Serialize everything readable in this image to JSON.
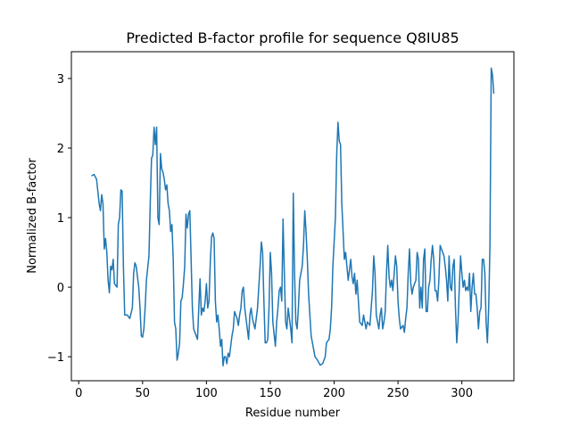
{
  "chart_data": {
    "type": "line",
    "title": "Predicted B-factor profile for sequence Q8IU85",
    "xlabel": "Residue number",
    "ylabel": "Normalized B-factor",
    "xlim": [
      -5.75,
      340.75
    ],
    "ylim": [
      -1.345,
      3.385
    ],
    "xticks": [
      0,
      50,
      100,
      150,
      200,
      250,
      300
    ],
    "yticks": [
      {
        "value": -1,
        "label": "−1"
      },
      0,
      1,
      2,
      3
    ],
    "series": [
      {
        "color": "#1f77b4",
        "x": [
          10,
          12,
          14,
          16,
          17,
          18,
          19,
          20,
          21,
          22,
          23,
          24,
          25,
          26,
          27,
          28,
          30,
          31,
          32,
          33,
          34,
          35,
          36,
          38,
          40,
          42,
          43,
          44,
          45,
          46,
          47,
          48,
          49,
          50,
          51,
          52,
          53,
          55,
          56,
          57,
          58,
          59,
          60,
          61,
          62,
          63,
          64,
          65,
          66,
          67,
          68,
          69,
          70,
          71,
          72,
          73,
          74,
          75,
          76,
          77,
          78,
          79,
          80,
          81,
          82,
          83,
          84,
          85,
          86,
          87,
          88,
          89,
          90,
          92,
          93,
          94,
          95,
          96,
          97,
          98,
          99,
          100,
          101,
          102,
          103,
          104,
          105,
          106,
          107,
          108,
          109,
          110,
          111,
          112,
          113,
          114,
          115,
          116,
          117,
          118,
          119,
          120,
          121,
          122,
          123,
          124,
          125,
          126,
          127,
          128,
          129,
          130,
          132,
          133,
          134,
          135,
          136,
          138,
          139,
          140,
          141,
          142,
          143,
          144,
          145,
          146,
          147,
          148,
          149,
          150,
          151,
          152,
          154,
          155,
          156,
          157,
          158,
          159,
          160,
          161,
          162,
          163,
          164,
          166,
          167,
          168,
          169,
          170,
          171,
          172,
          173,
          175,
          176,
          177,
          178,
          179,
          180,
          181,
          182,
          183,
          185,
          187,
          189,
          191,
          193,
          194,
          196,
          197,
          198,
          199,
          201,
          202,
          203,
          204,
          205,
          206,
          207,
          208,
          209,
          210,
          211,
          212,
          213,
          214,
          215,
          216,
          217,
          218,
          219,
          220,
          222,
          223,
          225,
          226,
          228,
          229,
          230,
          231,
          232,
          233,
          234,
          235,
          236,
          237,
          238,
          239,
          240,
          241,
          242,
          243,
          244,
          245,
          246,
          247,
          248,
          249,
          250,
          251,
          252,
          254,
          255,
          256,
          257,
          258,
          259,
          260,
          261,
          262,
          264,
          265,
          266,
          267,
          268,
          269,
          270,
          271,
          272,
          273,
          274,
          275,
          276,
          277,
          278,
          279,
          280,
          281,
          282,
          283,
          284,
          285,
          286,
          287,
          288,
          289,
          290,
          291,
          292,
          293,
          294,
          295,
          296,
          297,
          298,
          299,
          300,
          301,
          302,
          303,
          304,
          305,
          306,
          307,
          308,
          309,
          310,
          311,
          312,
          313,
          314,
          315,
          316,
          317,
          318,
          319,
          320,
          321,
          322,
          323,
          324,
          325
        ],
        "values": [
          1.6,
          1.62,
          1.55,
          1.2,
          1.1,
          1.33,
          1.2,
          0.55,
          0.7,
          0.5,
          0.1,
          -0.08,
          0.3,
          0.25,
          0.4,
          0.05,
          0.0,
          0.9,
          1.0,
          1.4,
          1.38,
          0.3,
          -0.4,
          -0.4,
          -0.45,
          -0.3,
          0.2,
          0.35,
          0.3,
          0.15,
          0.0,
          -0.3,
          -0.7,
          -0.72,
          -0.6,
          -0.3,
          0.1,
          0.45,
          1.2,
          1.85,
          1.9,
          2.3,
          2.05,
          2.3,
          1.0,
          0.9,
          1.92,
          1.7,
          1.65,
          1.55,
          1.4,
          1.47,
          1.2,
          1.1,
          0.8,
          0.9,
          0.4,
          -0.5,
          -0.6,
          -1.05,
          -0.95,
          -0.8,
          -0.2,
          -0.15,
          0.05,
          0.3,
          1.05,
          0.85,
          1.05,
          1.1,
          0.4,
          -0.3,
          -0.6,
          -0.7,
          -0.75,
          -0.3,
          0.12,
          -0.4,
          -0.3,
          -0.35,
          -0.2,
          0.05,
          -0.3,
          -0.2,
          0.35,
          0.72,
          0.78,
          0.7,
          -0.2,
          -0.5,
          -0.4,
          -0.6,
          -0.85,
          -0.75,
          -1.13,
          -1.0,
          -1.0,
          -1.1,
          -0.95,
          -1.0,
          -0.85,
          -0.7,
          -0.6,
          -0.35,
          -0.4,
          -0.45,
          -0.55,
          -0.4,
          -0.3,
          -0.05,
          0.0,
          -0.3,
          -0.6,
          -0.75,
          -0.4,
          -0.3,
          -0.45,
          -0.6,
          -0.45,
          -0.3,
          0.0,
          0.3,
          0.65,
          0.5,
          -0.2,
          -0.8,
          -0.8,
          -0.75,
          -0.3,
          0.5,
          0.2,
          -0.5,
          -0.85,
          -0.5,
          -0.3,
          -0.05,
          0.0,
          -0.2,
          0.98,
          0.2,
          -0.5,
          -0.6,
          -0.3,
          -0.6,
          -0.8,
          1.35,
          0.2,
          -0.5,
          -0.6,
          -0.3,
          0.1,
          0.3,
          0.6,
          1.1,
          0.8,
          0.4,
          -0.1,
          -0.4,
          -0.7,
          -0.8,
          -1.0,
          -1.05,
          -1.12,
          -1.1,
          -1.0,
          -0.8,
          -0.75,
          -0.6,
          -0.3,
          0.3,
          1.0,
          1.9,
          2.37,
          2.1,
          2.05,
          1.2,
          0.8,
          0.4,
          0.5,
          0.3,
          0.1,
          0.25,
          0.4,
          0.15,
          0.05,
          0.2,
          -0.1,
          0.1,
          -0.2,
          -0.5,
          -0.55,
          -0.4,
          -0.6,
          -0.5,
          -0.55,
          -0.3,
          -0.05,
          0.45,
          0.2,
          -0.4,
          -0.5,
          -0.6,
          -0.4,
          -0.3,
          -0.6,
          -0.5,
          -0.35,
          0.2,
          0.6,
          0.15,
          0.0,
          0.1,
          -0.05,
          0.2,
          0.45,
          0.3,
          -0.2,
          -0.45,
          -0.6,
          -0.55,
          -0.65,
          -0.45,
          -0.3,
          0.2,
          0.55,
          0.05,
          -0.1,
          0.0,
          0.1,
          0.5,
          0.4,
          -0.3,
          0.0,
          -0.3,
          0.4,
          0.55,
          -0.35,
          -0.35,
          0.0,
          0.1,
          0.4,
          0.6,
          0.4,
          -0.05,
          -0.05,
          -0.2,
          0.1,
          0.6,
          0.55,
          0.5,
          0.45,
          0.3,
          0.1,
          -0.2,
          0.45,
          0.0,
          -0.05,
          0.3,
          0.4,
          -0.3,
          -0.8,
          -0.5,
          0.0,
          0.45,
          0.2,
          0.0,
          0.1,
          -0.05,
          0.0,
          -0.05,
          0.2,
          -0.35,
          0.0,
          0.2,
          -0.1,
          -0.1,
          -0.3,
          -0.6,
          -0.35,
          -0.3,
          0.4,
          0.4,
          0.2,
          -0.5,
          -0.8,
          -0.3,
          0.6,
          3.15,
          3.05,
          2.78
        ]
      }
    ]
  }
}
